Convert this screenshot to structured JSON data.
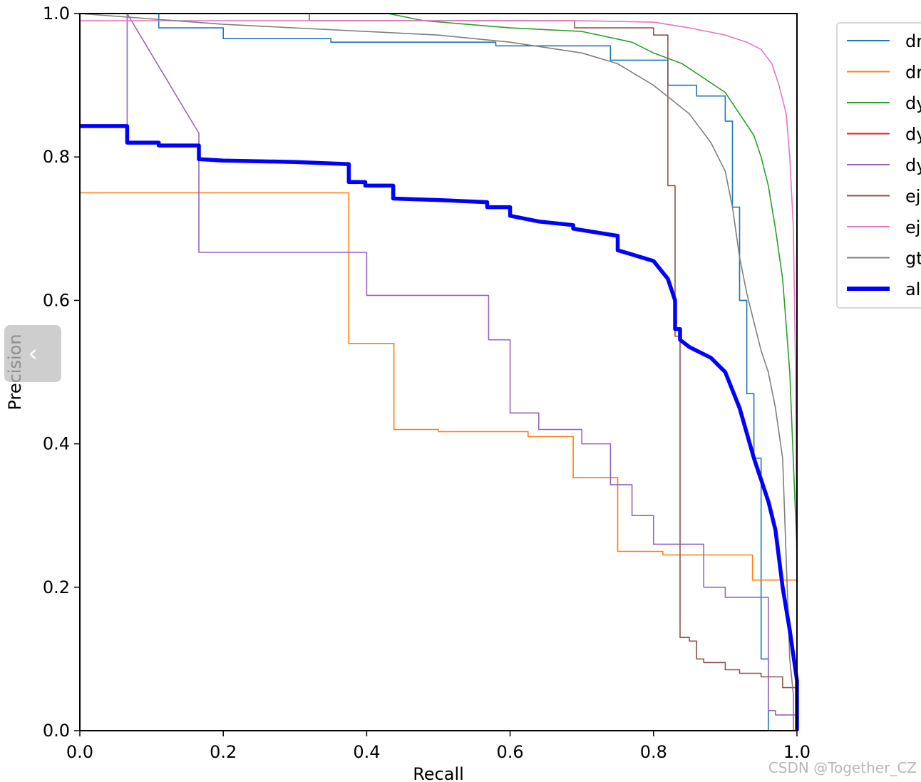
{
  "chart_data": {
    "type": "line",
    "title": "",
    "xlabel": "Recall",
    "ylabel": "Precision",
    "xlim": [
      0,
      1
    ],
    "ylim": [
      0,
      1
    ],
    "xticks": [
      "0.0",
      "0.2",
      "0.4",
      "0.6",
      "0.8",
      "1.0"
    ],
    "yticks": [
      "0.0",
      "0.2",
      "0.4",
      "0.6",
      "0.8",
      "1.0"
    ],
    "grid": false,
    "legend_position": "outside-top-right",
    "series": [
      {
        "name": "dr",
        "color": "#1f77b4",
        "width": 1.6,
        "x": [
          0,
          0.11,
          0.11,
          0.2,
          0.2,
          0.35,
          0.35,
          0.58,
          0.58,
          0.74,
          0.74,
          0.82,
          0.82,
          0.86,
          0.86,
          0.9,
          0.9,
          0.91,
          0.91,
          0.92,
          0.92,
          0.93,
          0.93,
          0.94,
          0.94,
          0.95,
          0.95,
          0.96,
          0.96
        ],
        "y": [
          1,
          1,
          0.98,
          0.98,
          0.965,
          0.965,
          0.96,
          0.96,
          0.955,
          0.955,
          0.935,
          0.935,
          0.9,
          0.9,
          0.885,
          0.885,
          0.85,
          0.85,
          0.73,
          0.73,
          0.6,
          0.6,
          0.47,
          0.47,
          0.38,
          0.38,
          0.1,
          0.1,
          0
        ]
      },
      {
        "name": "dr",
        "color": "#ff7f0e",
        "width": 1.6,
        "x": [
          0,
          0.375,
          0.375,
          0.438,
          0.438,
          0.5,
          0.5,
          0.625,
          0.625,
          0.688,
          0.688,
          0.75,
          0.75,
          0.813,
          0.813,
          0.938,
          0.938,
          1,
          1
        ],
        "y": [
          0.75,
          0.75,
          0.54,
          0.54,
          0.42,
          0.42,
          0.417,
          0.417,
          0.41,
          0.41,
          0.353,
          0.353,
          0.25,
          0.25,
          0.245,
          0.245,
          0.21,
          0.21,
          0
        ]
      },
      {
        "name": "dy",
        "color": "#2ca02c",
        "width": 1.6,
        "x": [
          0,
          0.43,
          0.48,
          0.6,
          0.7,
          0.77,
          0.8,
          0.84,
          0.87,
          0.9,
          0.92,
          0.94,
          0.95,
          0.96,
          0.97,
          0.98,
          0.99,
          1,
          1
        ],
        "y": [
          1,
          1,
          0.99,
          0.98,
          0.975,
          0.96,
          0.945,
          0.93,
          0.91,
          0.89,
          0.86,
          0.83,
          0.8,
          0.76,
          0.7,
          0.63,
          0.5,
          0.25,
          0
        ]
      },
      {
        "name": "dy",
        "color": "#d62728",
        "width": 1.6,
        "x": [],
        "y": []
      },
      {
        "name": "dy",
        "color": "#9467bd",
        "width": 1.6,
        "x": [
          0.066,
          0.066,
          0.166,
          0.166,
          0.4,
          0.4,
          0.57,
          0.57,
          0.6,
          0.6,
          0.64,
          0.64,
          0.7,
          0.7,
          0.74,
          0.74,
          0.77,
          0.77,
          0.8,
          0.8,
          0.87,
          0.87,
          0.9,
          0.9,
          0.96,
          0.96,
          0.97,
          0.97,
          1,
          1
        ],
        "y": [
          0.833,
          1,
          0.833,
          0.667,
          0.667,
          0.607,
          0.607,
          0.545,
          0.545,
          0.443,
          0.443,
          0.42,
          0.42,
          0.4,
          0.4,
          0.343,
          0.343,
          0.3,
          0.3,
          0.26,
          0.26,
          0.2,
          0.2,
          0.186,
          0.186,
          0.028,
          0.028,
          0.022,
          0.022,
          0
        ]
      },
      {
        "name": "ej",
        "color": "#8c564b",
        "width": 1.6,
        "x": [
          0,
          0.32,
          0.32,
          0.69,
          0.69,
          0.8,
          0.8,
          0.82,
          0.82,
          0.83,
          0.83,
          0.837,
          0.837,
          0.85,
          0.85,
          0.86,
          0.86,
          0.87,
          0.87,
          0.9,
          0.9,
          0.92,
          0.92,
          0.95,
          0.95,
          0.98,
          0.98,
          1,
          1
        ],
        "y": [
          1,
          1,
          0.99,
          0.99,
          0.98,
          0.98,
          0.97,
          0.97,
          0.76,
          0.76,
          0.55,
          0.55,
          0.13,
          0.13,
          0.125,
          0.125,
          0.1,
          0.1,
          0.095,
          0.095,
          0.085,
          0.085,
          0.08,
          0.08,
          0.075,
          0.075,
          0.06,
          0.06,
          0
        ]
      },
      {
        "name": "ej",
        "color": "#e377c2",
        "width": 1.6,
        "x": [
          0,
          0.7,
          0.8,
          0.85,
          0.9,
          0.93,
          0.95,
          0.965,
          0.975,
          0.985,
          0.99,
          0.995,
          0.998,
          1,
          1
        ],
        "y": [
          0.99,
          0.99,
          0.988,
          0.98,
          0.97,
          0.96,
          0.95,
          0.93,
          0.9,
          0.86,
          0.8,
          0.7,
          0.5,
          0.2,
          0
        ]
      },
      {
        "name": "gt",
        "color": "#7f7f7f",
        "width": 1.6,
        "x": [
          0,
          0.2,
          0.5,
          0.6,
          0.7,
          0.75,
          0.8,
          0.85,
          0.88,
          0.9,
          0.91,
          0.92,
          0.93,
          0.94,
          0.95,
          0.96,
          0.97,
          0.98,
          0.99,
          0.995,
          0.995
        ],
        "y": [
          1,
          0.985,
          0.97,
          0.96,
          0.945,
          0.93,
          0.9,
          0.86,
          0.82,
          0.78,
          0.73,
          0.66,
          0.61,
          0.57,
          0.53,
          0.5,
          0.45,
          0.38,
          0.1,
          0.05,
          0
        ]
      },
      {
        "name": "al",
        "color": "#0000ff",
        "width": 5.5,
        "x": [
          0,
          0.066,
          0.066,
          0.11,
          0.11,
          0.166,
          0.166,
          0.2,
          0.3,
          0.375,
          0.375,
          0.398,
          0.398,
          0.437,
          0.437,
          0.5,
          0.568,
          0.568,
          0.6,
          0.6,
          0.64,
          0.688,
          0.688,
          0.75,
          0.75,
          0.8,
          0.82,
          0.83,
          0.83,
          0.837,
          0.837,
          0.85,
          0.88,
          0.9,
          0.92,
          0.94,
          0.95,
          0.96,
          0.97,
          0.98,
          0.99,
          1,
          1
        ],
        "y": [
          0.843,
          0.843,
          0.82,
          0.82,
          0.816,
          0.816,
          0.797,
          0.795,
          0.793,
          0.79,
          0.765,
          0.765,
          0.76,
          0.76,
          0.742,
          0.74,
          0.737,
          0.73,
          0.73,
          0.718,
          0.71,
          0.705,
          0.7,
          0.69,
          0.67,
          0.655,
          0.63,
          0.6,
          0.56,
          0.56,
          0.545,
          0.535,
          0.52,
          0.5,
          0.45,
          0.38,
          0.35,
          0.32,
          0.28,
          0.2,
          0.14,
          0.07,
          0
        ]
      }
    ]
  },
  "watermark": "CSDN @Together_CZ",
  "back_tab": {
    "glyph": "‹"
  }
}
